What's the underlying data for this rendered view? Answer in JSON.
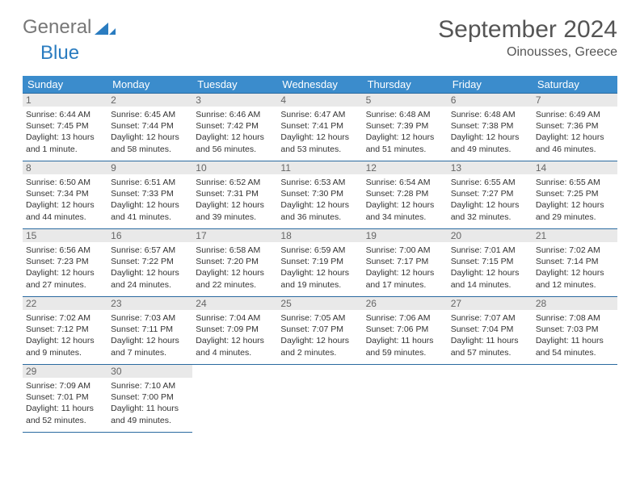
{
  "logo": {
    "text1": "General",
    "text2": "Blue"
  },
  "title": "September 2024",
  "subtitle": "Oinousses, Greece",
  "colors": {
    "header_bg": "#3b8ccc",
    "header_text": "#ffffff",
    "border": "#2a6aa0",
    "daynum_bg": "#e9e9e9",
    "logo_gray": "#777777",
    "logo_blue": "#2a7cc0",
    "triangle": "#2a7cc0"
  },
  "day_headers": [
    "Sunday",
    "Monday",
    "Tuesday",
    "Wednesday",
    "Thursday",
    "Friday",
    "Saturday"
  ],
  "weeks": [
    [
      {
        "n": "1",
        "sr": "6:44 AM",
        "ss": "7:45 PM",
        "dl": "13 hours and 1 minute."
      },
      {
        "n": "2",
        "sr": "6:45 AM",
        "ss": "7:44 PM",
        "dl": "12 hours and 58 minutes."
      },
      {
        "n": "3",
        "sr": "6:46 AM",
        "ss": "7:42 PM",
        "dl": "12 hours and 56 minutes."
      },
      {
        "n": "4",
        "sr": "6:47 AM",
        "ss": "7:41 PM",
        "dl": "12 hours and 53 minutes."
      },
      {
        "n": "5",
        "sr": "6:48 AM",
        "ss": "7:39 PM",
        "dl": "12 hours and 51 minutes."
      },
      {
        "n": "6",
        "sr": "6:48 AM",
        "ss": "7:38 PM",
        "dl": "12 hours and 49 minutes."
      },
      {
        "n": "7",
        "sr": "6:49 AM",
        "ss": "7:36 PM",
        "dl": "12 hours and 46 minutes."
      }
    ],
    [
      {
        "n": "8",
        "sr": "6:50 AM",
        "ss": "7:34 PM",
        "dl": "12 hours and 44 minutes."
      },
      {
        "n": "9",
        "sr": "6:51 AM",
        "ss": "7:33 PM",
        "dl": "12 hours and 41 minutes."
      },
      {
        "n": "10",
        "sr": "6:52 AM",
        "ss": "7:31 PM",
        "dl": "12 hours and 39 minutes."
      },
      {
        "n": "11",
        "sr": "6:53 AM",
        "ss": "7:30 PM",
        "dl": "12 hours and 36 minutes."
      },
      {
        "n": "12",
        "sr": "6:54 AM",
        "ss": "7:28 PM",
        "dl": "12 hours and 34 minutes."
      },
      {
        "n": "13",
        "sr": "6:55 AM",
        "ss": "7:27 PM",
        "dl": "12 hours and 32 minutes."
      },
      {
        "n": "14",
        "sr": "6:55 AM",
        "ss": "7:25 PM",
        "dl": "12 hours and 29 minutes."
      }
    ],
    [
      {
        "n": "15",
        "sr": "6:56 AM",
        "ss": "7:23 PM",
        "dl": "12 hours and 27 minutes."
      },
      {
        "n": "16",
        "sr": "6:57 AM",
        "ss": "7:22 PM",
        "dl": "12 hours and 24 minutes."
      },
      {
        "n": "17",
        "sr": "6:58 AM",
        "ss": "7:20 PM",
        "dl": "12 hours and 22 minutes."
      },
      {
        "n": "18",
        "sr": "6:59 AM",
        "ss": "7:19 PM",
        "dl": "12 hours and 19 minutes."
      },
      {
        "n": "19",
        "sr": "7:00 AM",
        "ss": "7:17 PM",
        "dl": "12 hours and 17 minutes."
      },
      {
        "n": "20",
        "sr": "7:01 AM",
        "ss": "7:15 PM",
        "dl": "12 hours and 14 minutes."
      },
      {
        "n": "21",
        "sr": "7:02 AM",
        "ss": "7:14 PM",
        "dl": "12 hours and 12 minutes."
      }
    ],
    [
      {
        "n": "22",
        "sr": "7:02 AM",
        "ss": "7:12 PM",
        "dl": "12 hours and 9 minutes."
      },
      {
        "n": "23",
        "sr": "7:03 AM",
        "ss": "7:11 PM",
        "dl": "12 hours and 7 minutes."
      },
      {
        "n": "24",
        "sr": "7:04 AM",
        "ss": "7:09 PM",
        "dl": "12 hours and 4 minutes."
      },
      {
        "n": "25",
        "sr": "7:05 AM",
        "ss": "7:07 PM",
        "dl": "12 hours and 2 minutes."
      },
      {
        "n": "26",
        "sr": "7:06 AM",
        "ss": "7:06 PM",
        "dl": "11 hours and 59 minutes."
      },
      {
        "n": "27",
        "sr": "7:07 AM",
        "ss": "7:04 PM",
        "dl": "11 hours and 57 minutes."
      },
      {
        "n": "28",
        "sr": "7:08 AM",
        "ss": "7:03 PM",
        "dl": "11 hours and 54 minutes."
      }
    ],
    [
      {
        "n": "29",
        "sr": "7:09 AM",
        "ss": "7:01 PM",
        "dl": "11 hours and 52 minutes."
      },
      {
        "n": "30",
        "sr": "7:10 AM",
        "ss": "7:00 PM",
        "dl": "11 hours and 49 minutes."
      },
      null,
      null,
      null,
      null,
      null
    ]
  ],
  "labels": {
    "sunrise": "Sunrise: ",
    "sunset": "Sunset: ",
    "daylight": "Daylight: "
  }
}
